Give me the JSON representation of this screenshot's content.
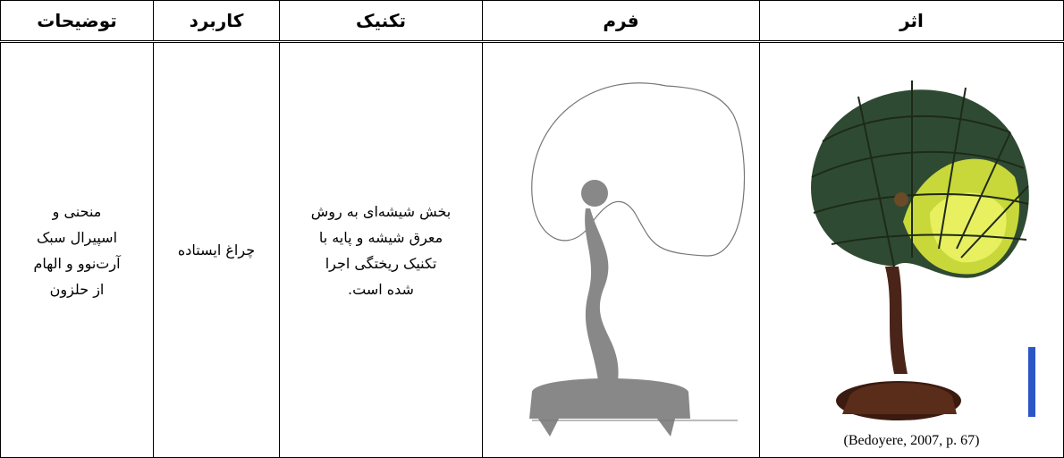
{
  "table": {
    "header": [
      "اثر",
      "فرم",
      "تکنیک",
      "کاربرد",
      "توضیحات"
    ],
    "rows": [
      {
        "artwork_caption": "(Bedoyere, 2007, p. 67)",
        "technique": [
          "بخش شیشه‌ای به روش",
          "معرق شیشه و پایه با",
          "تکنیک ریختگی اجرا",
          "شده است."
        ],
        "usage": "چراغ ایستاده",
        "description": [
          "منحنی و",
          "اسپیرال سبک",
          "آرت‌نوو و الهام",
          "از حلزون"
        ]
      }
    ]
  }
}
